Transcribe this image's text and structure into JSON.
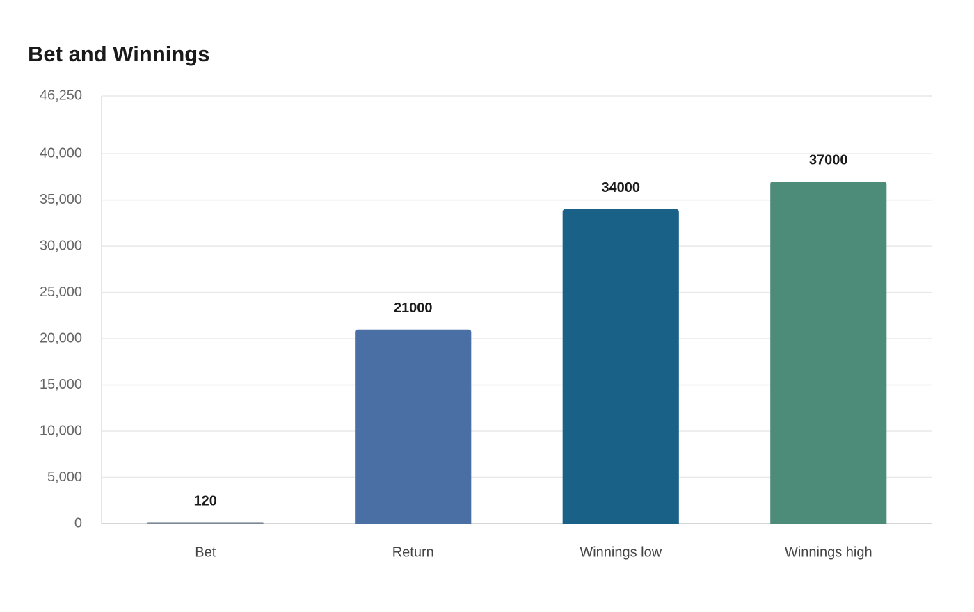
{
  "chart_data": {
    "type": "bar",
    "title": "Bet and Winnings",
    "categories": [
      "Bet",
      "Return",
      "Winnings low",
      "Winnings high"
    ],
    "values": [
      120,
      21000,
      34000,
      37000
    ],
    "colors": [
      "#7b8794",
      "#4a6fa5",
      "#1a6187",
      "#4e8c7a"
    ],
    "ylim": [
      0,
      46250
    ],
    "yticks": [
      0,
      {
        "value": 5000,
        "label": "5,000"
      },
      {
        "value": 10000,
        "label": "10,000"
      },
      {
        "value": 15000,
        "label": "15,000"
      },
      {
        "value": 20000,
        "label": "20,000"
      },
      {
        "value": 25000,
        "label": "25,000"
      },
      {
        "value": 30000,
        "label": "30,000"
      },
      {
        "value": 35000,
        "label": "35,000"
      },
      {
        "value": 40000,
        "label": "40,000"
      },
      {
        "value": 46250,
        "label": "46,250"
      }
    ],
    "grid": true
  }
}
